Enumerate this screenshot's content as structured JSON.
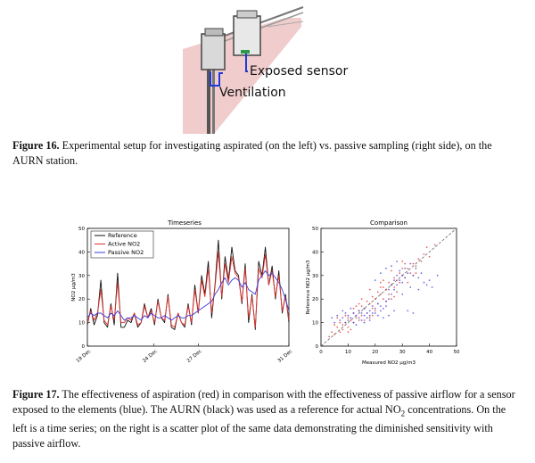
{
  "figure16": {
    "label_exposed": "Exposed sensor",
    "label_ventilation": "Ventilation",
    "caption_label": "Figure 16.",
    "caption_text": " Experimental setup for investigating aspirated (on the left) vs. passive sampling (right side), on the AURN station."
  },
  "figure17": {
    "caption_label": "Figure 17.",
    "caption_part1": " The effectiveness of aspiration (red) in comparison with the effectiveness of passive airflow for a sensor exposed to the elements (blue). The AURN (black) was used as a reference for actual NO",
    "caption_sub": "2",
    "caption_part2": " concentrations. On the left is a time series; on the right is a scatter plot of the same data demonstrating the diminished sensitivity with passive airflow."
  },
  "colors": {
    "reference": "#111111",
    "active": "#e0302a",
    "passive": "#3a3ad8",
    "pink_panel": "#efc3c3",
    "diagonal": "#666666"
  },
  "chart_data": [
    {
      "type": "line",
      "title": "Timeseries",
      "ylabel": "NO2 µg/m3",
      "ylim": [
        0,
        50
      ],
      "yticks": [
        "0",
        "10",
        "20",
        "30",
        "40",
        "50"
      ],
      "xticks": [
        "19 Dec",
        "24 Dec",
        "27 Dec",
        "31 Dec"
      ],
      "legend_position": "top-left",
      "series": [
        {
          "name": "Reference",
          "values": [
            9,
            16,
            9,
            13,
            28,
            10,
            8,
            18,
            9,
            31,
            8,
            8,
            11,
            10,
            14,
            8,
            10,
            18,
            12,
            16,
            9,
            20,
            12,
            10,
            22,
            8,
            7,
            14,
            10,
            8,
            18,
            9,
            26,
            14,
            30,
            22,
            36,
            12,
            26,
            45,
            20,
            38,
            28,
            42,
            32,
            30,
            18,
            35,
            10,
            22,
            7,
            36,
            30,
            42,
            26,
            34,
            20,
            32,
            14,
            22,
            10
          ]
        },
        {
          "name": "Active NO2",
          "values": [
            10,
            15,
            11,
            14,
            24,
            11,
            9,
            17,
            11,
            27,
            10,
            10,
            12,
            11,
            14,
            9,
            10,
            17,
            12,
            15,
            10,
            19,
            12,
            11,
            21,
            9,
            8,
            14,
            10,
            9,
            17,
            10,
            24,
            14,
            28,
            21,
            33,
            14,
            25,
            40,
            21,
            35,
            27,
            38,
            31,
            29,
            19,
            33,
            12,
            21,
            8,
            33,
            29,
            39,
            26,
            32,
            21,
            30,
            15,
            21,
            11
          ]
        },
        {
          "name": "Passive NO2",
          "values": [
            12,
            14,
            13,
            14,
            14,
            13,
            12,
            14,
            13,
            15,
            13,
            11,
            12,
            12,
            13,
            12,
            11,
            13,
            12,
            14,
            13,
            12,
            12,
            13,
            12,
            11,
            12,
            13,
            12,
            12,
            13,
            13,
            14,
            15,
            16,
            17,
            18,
            19,
            22,
            24,
            27,
            29,
            26,
            28,
            29,
            28,
            25,
            27,
            24,
            23,
            22,
            28,
            30,
            32,
            30,
            31,
            29,
            27,
            24,
            20,
            15
          ]
        }
      ]
    },
    {
      "type": "scatter",
      "title": "Comparison",
      "xlabel": "Measured NO2 µg/m3",
      "ylabel": "Reference NO2 µg/m3",
      "xlim": [
        0,
        50
      ],
      "ylim": [
        0,
        50
      ],
      "xticks": [
        "0",
        "10",
        "20",
        "30",
        "40",
        "50"
      ],
      "yticks": [
        "0",
        "10",
        "20",
        "30",
        "40",
        "50"
      ],
      "diagonal": true,
      "series": [
        {
          "name": "Active NO2",
          "points": [
            [
              3,
              4
            ],
            [
              4,
              6
            ],
            [
              5,
              5
            ],
            [
              6,
              8
            ],
            [
              7,
              6
            ],
            [
              8,
              9
            ],
            [
              8,
              7
            ],
            [
              9,
              10
            ],
            [
              10,
              8
            ],
            [
              10,
              12
            ],
            [
              11,
              11
            ],
            [
              12,
              10
            ],
            [
              12,
              14
            ],
            [
              13,
              12
            ],
            [
              14,
              15
            ],
            [
              14,
              11
            ],
            [
              15,
              13
            ],
            [
              15,
              17
            ],
            [
              16,
              16
            ],
            [
              17,
              14
            ],
            [
              17,
              19
            ],
            [
              18,
              18
            ],
            [
              19,
              16
            ],
            [
              19,
              21
            ],
            [
              20,
              20
            ],
            [
              21,
              18
            ],
            [
              21,
              23
            ],
            [
              22,
              22
            ],
            [
              23,
              20
            ],
            [
              23,
              25
            ],
            [
              24,
              24
            ],
            [
              25,
              22
            ],
            [
              25,
              27
            ],
            [
              26,
              26
            ],
            [
              27,
              25
            ],
            [
              27,
              29
            ],
            [
              28,
              28
            ],
            [
              29,
              27
            ],
            [
              29,
              31
            ],
            [
              30,
              30
            ],
            [
              31,
              29
            ],
            [
              32,
              33
            ],
            [
              33,
              31
            ],
            [
              34,
              35
            ],
            [
              35,
              34
            ],
            [
              36,
              37
            ],
            [
              37,
              36
            ],
            [
              38,
              39
            ],
            [
              40,
              38
            ],
            [
              42,
              43
            ],
            [
              6,
              12
            ],
            [
              9,
              13
            ],
            [
              11,
              7
            ],
            [
              13,
              17
            ],
            [
              16,
              11
            ],
            [
              18,
              24
            ],
            [
              20,
              15
            ],
            [
              22,
              27
            ],
            [
              24,
              19
            ],
            [
              26,
              32
            ],
            [
              28,
              23
            ],
            [
              30,
              36
            ],
            [
              32,
              27
            ],
            [
              34,
              30
            ],
            [
              7,
              10
            ],
            [
              12,
              16
            ],
            [
              15,
              20
            ],
            [
              19,
              13
            ],
            [
              23,
              28
            ],
            [
              27,
              21
            ],
            [
              31,
              35
            ],
            [
              35,
              31
            ],
            [
              39,
              42
            ],
            [
              5,
              9
            ],
            [
              10,
              6
            ],
            [
              14,
              18
            ],
            [
              18,
              12
            ],
            [
              22,
              25
            ],
            [
              26,
              20
            ],
            [
              30,
              33
            ]
          ]
        },
        {
          "name": "Passive NO2",
          "points": [
            [
              4,
              12
            ],
            [
              5,
              10
            ],
            [
              6,
              13
            ],
            [
              7,
              11
            ],
            [
              8,
              12
            ],
            [
              9,
              14
            ],
            [
              10,
              11
            ],
            [
              10,
              13
            ],
            [
              11,
              12
            ],
            [
              12,
              14
            ],
            [
              12,
              10
            ],
            [
              13,
              13
            ],
            [
              14,
              12
            ],
            [
              14,
              15
            ],
            [
              15,
              11
            ],
            [
              15,
              14
            ],
            [
              16,
              13
            ],
            [
              16,
              16
            ],
            [
              17,
              12
            ],
            [
              17,
              14
            ],
            [
              18,
              15
            ],
            [
              18,
              13
            ],
            [
              19,
              14
            ],
            [
              19,
              17
            ],
            [
              20,
              14
            ],
            [
              20,
              16
            ],
            [
              21,
              13
            ],
            [
              21,
              18
            ],
            [
              22,
              15
            ],
            [
              22,
              17
            ],
            [
              23,
              16
            ],
            [
              24,
              19
            ],
            [
              24,
              17
            ],
            [
              25,
              20
            ],
            [
              25,
              24
            ],
            [
              26,
              22
            ],
            [
              26,
              26
            ],
            [
              27,
              24
            ],
            [
              27,
              28
            ],
            [
              28,
              26
            ],
            [
              28,
              30
            ],
            [
              29,
              28
            ],
            [
              29,
              32
            ],
            [
              30,
              30
            ],
            [
              30,
              27
            ],
            [
              31,
              33
            ],
            [
              31,
              29
            ],
            [
              32,
              31
            ],
            [
              33,
              35
            ],
            [
              34,
              30
            ],
            [
              35,
              33
            ],
            [
              36,
              29
            ],
            [
              37,
              31
            ],
            [
              38,
              27
            ],
            [
              39,
              26
            ],
            [
              40,
              28
            ],
            [
              41,
              25
            ],
            [
              43,
              30
            ],
            [
              22,
              31
            ],
            [
              24,
              33
            ],
            [
              26,
              34
            ],
            [
              28,
              36
            ],
            [
              20,
              28
            ],
            [
              23,
              12
            ],
            [
              25,
              13
            ],
            [
              27,
              15
            ],
            [
              32,
              15
            ],
            [
              34,
              14
            ],
            [
              13,
              9
            ],
            [
              11,
              16
            ],
            [
              9,
              10
            ],
            [
              8,
              15
            ],
            [
              16,
              10
            ],
            [
              18,
              11
            ],
            [
              30,
              22
            ],
            [
              33,
              25
            ],
            [
              36,
              24
            ]
          ]
        }
      ]
    }
  ]
}
